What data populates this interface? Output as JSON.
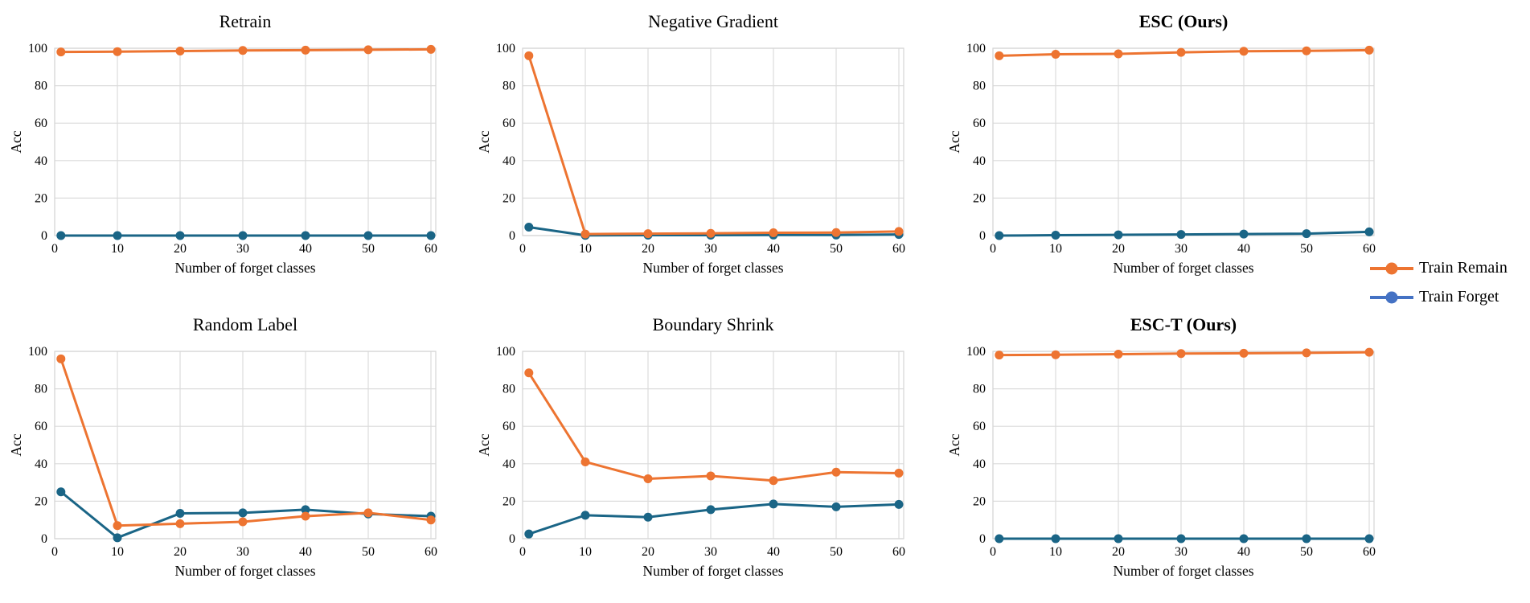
{
  "axes": {
    "ylabel": "Acc",
    "xlabel": "Number of forget classes",
    "yticks": [
      0,
      20,
      40,
      60,
      80,
      100
    ],
    "xticks": [
      0,
      10,
      20,
      30,
      40,
      50,
      60
    ],
    "ylim": [
      0,
      100
    ],
    "xlim": [
      0,
      61
    ],
    "grid": "on",
    "legend_position": "right"
  },
  "colors": {
    "train_remain": "#ED7431",
    "train_forget": "#1A6586",
    "legend_forget_marker": "#4472C4",
    "grid": "#DCDCDC",
    "frame": "#D6D6D6",
    "text": "#000000"
  },
  "legend": {
    "items": [
      {
        "label": "Train Remain",
        "marker_color": "#ED7431",
        "icon": "train-remain-marker-icon"
      },
      {
        "label": "Train Forget",
        "marker_color": "#4472C4",
        "icon": "train-forget-marker-icon"
      }
    ]
  },
  "chart_data": [
    {
      "id": "retrain",
      "type": "line",
      "title": "Retrain",
      "bold": false,
      "x": [
        1,
        10,
        20,
        30,
        40,
        50,
        60
      ],
      "series": [
        {
          "name": "Train Remain",
          "values": [
            98,
            98.2,
            98.5,
            98.8,
            99,
            99.2,
            99.4
          ]
        },
        {
          "name": "Train Forget",
          "values": [
            0,
            0,
            0,
            0,
            0,
            0,
            0
          ]
        }
      ]
    },
    {
      "id": "negative-gradient",
      "type": "line",
      "title": "Negative Gradient",
      "bold": false,
      "x": [
        1,
        10,
        20,
        30,
        40,
        50,
        60
      ],
      "series": [
        {
          "name": "Train Remain",
          "values": [
            96,
            0.8,
            1,
            1.2,
            1.5,
            1.6,
            2.2
          ]
        },
        {
          "name": "Train Forget",
          "values": [
            4.5,
            0.1,
            0.2,
            0.2,
            0.3,
            0.3,
            0.6
          ]
        }
      ]
    },
    {
      "id": "esc",
      "type": "line",
      "title": "ESC (Ours)",
      "bold": true,
      "x": [
        1,
        10,
        20,
        30,
        40,
        50,
        60
      ],
      "series": [
        {
          "name": "Train Remain",
          "values": [
            96,
            96.8,
            97,
            97.8,
            98.4,
            98.6,
            99
          ]
        },
        {
          "name": "Train Forget",
          "values": [
            0,
            0.2,
            0.4,
            0.6,
            0.8,
            1,
            2
          ]
        }
      ]
    },
    {
      "id": "random-label",
      "type": "line",
      "title": "Random Label",
      "bold": false,
      "x": [
        1,
        10,
        20,
        30,
        40,
        50,
        60
      ],
      "series": [
        {
          "name": "Train Remain",
          "values": [
            96,
            7,
            8,
            9,
            12,
            13.8,
            10
          ]
        },
        {
          "name": "Train Forget",
          "values": [
            25,
            0.5,
            13.5,
            13.8,
            15.5,
            13.2,
            12
          ]
        }
      ]
    },
    {
      "id": "boundary-shrink",
      "type": "line",
      "title": "Boundary Shrink",
      "bold": false,
      "x": [
        1,
        10,
        20,
        30,
        40,
        50,
        60
      ],
      "series": [
        {
          "name": "Train Remain",
          "values": [
            88.5,
            41,
            32,
            33.5,
            31,
            35.5,
            35
          ]
        },
        {
          "name": "Train Forget",
          "values": [
            2.5,
            12.5,
            11.5,
            15.5,
            18.5,
            17,
            18.3
          ]
        }
      ]
    },
    {
      "id": "esc-t",
      "type": "line",
      "title": "ESC-T (Ours)",
      "bold": true,
      "x": [
        1,
        10,
        20,
        30,
        40,
        50,
        60
      ],
      "series": [
        {
          "name": "Train Remain",
          "values": [
            98,
            98.2,
            98.5,
            98.8,
            99,
            99.2,
            99.5
          ]
        },
        {
          "name": "Train Forget",
          "values": [
            0,
            0,
            0,
            0,
            0,
            0,
            0
          ]
        }
      ]
    }
  ]
}
